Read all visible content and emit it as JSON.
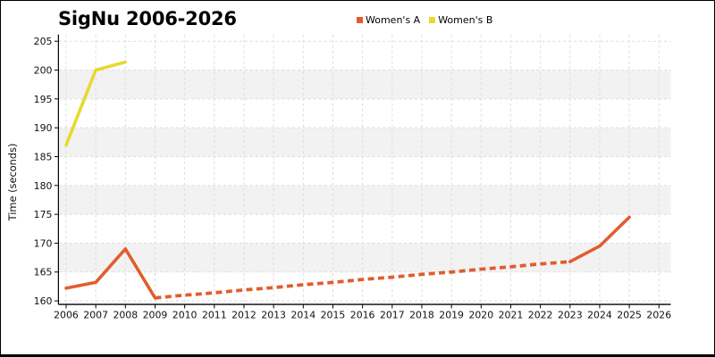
{
  "figure": {
    "background": "#ffffff",
    "border_color": "#000000"
  },
  "title": "SigNu 2006-2026",
  "legend": {
    "position": "top-center",
    "items": [
      {
        "label": "Women's A",
        "color": "#E15D2D"
      },
      {
        "label": "Women's B",
        "color": "#E6D930"
      }
    ]
  },
  "chart_data": {
    "type": "line",
    "title": "SigNu 2006-2026",
    "xlabel": "",
    "ylabel": "Time (seconds)",
    "x": [
      2006,
      2007,
      2008,
      2009,
      2010,
      2011,
      2012,
      2013,
      2014,
      2015,
      2016,
      2017,
      2018,
      2019,
      2020,
      2021,
      2022,
      2023,
      2024,
      2025,
      2026
    ],
    "xticks": [
      "2006",
      "2007",
      "2008",
      "2009",
      "2010",
      "2011",
      "2012",
      "2013",
      "2014",
      "2015",
      "2016",
      "2017",
      "2018",
      "2019",
      "2020",
      "2021",
      "2022",
      "2023",
      "2024",
      "2025",
      "2026"
    ],
    "yticks": [
      "160",
      "165",
      "170",
      "175",
      "180",
      "185",
      "190",
      "195",
      "200",
      "205"
    ],
    "ytick_values": [
      160,
      165,
      170,
      175,
      180,
      185,
      190,
      195,
      200,
      205
    ],
    "ylim": [
      159.4,
      206
    ],
    "xlim": [
      2005.7,
      2026.4
    ],
    "grid": "dashed",
    "grid_color": "#DCDCDC",
    "band_color": "#F2F2F2",
    "band_fill_ranges": [
      [
        165,
        170
      ],
      [
        175,
        180
      ],
      [
        185,
        190
      ],
      [
        195,
        200
      ]
    ],
    "legend_position": "top-center",
    "series": [
      {
        "name": "Women's A",
        "color": "#E15D2D",
        "style_note": "solid 2006-2009, dashed (projection) 2009-2023, solid 2023-2025",
        "dashed_between": [
          2009,
          2023
        ],
        "values": [
          162.2,
          163.2,
          169,
          160.5,
          161,
          161.4,
          161.9,
          162.3,
          162.8,
          163.2,
          163.7,
          164.1,
          164.6,
          165,
          165.5,
          165.9,
          166.4,
          166.8,
          169.5,
          174.5,
          null
        ]
      },
      {
        "name": "Women's B",
        "color": "#E6D930",
        "style_note": "solid 2006-2008 only",
        "dashed_between": null,
        "values": [
          187,
          200,
          201.4,
          null,
          null,
          null,
          null,
          null,
          null,
          null,
          null,
          null,
          null,
          null,
          null,
          null,
          null,
          null,
          null,
          null,
          null
        ]
      }
    ]
  }
}
